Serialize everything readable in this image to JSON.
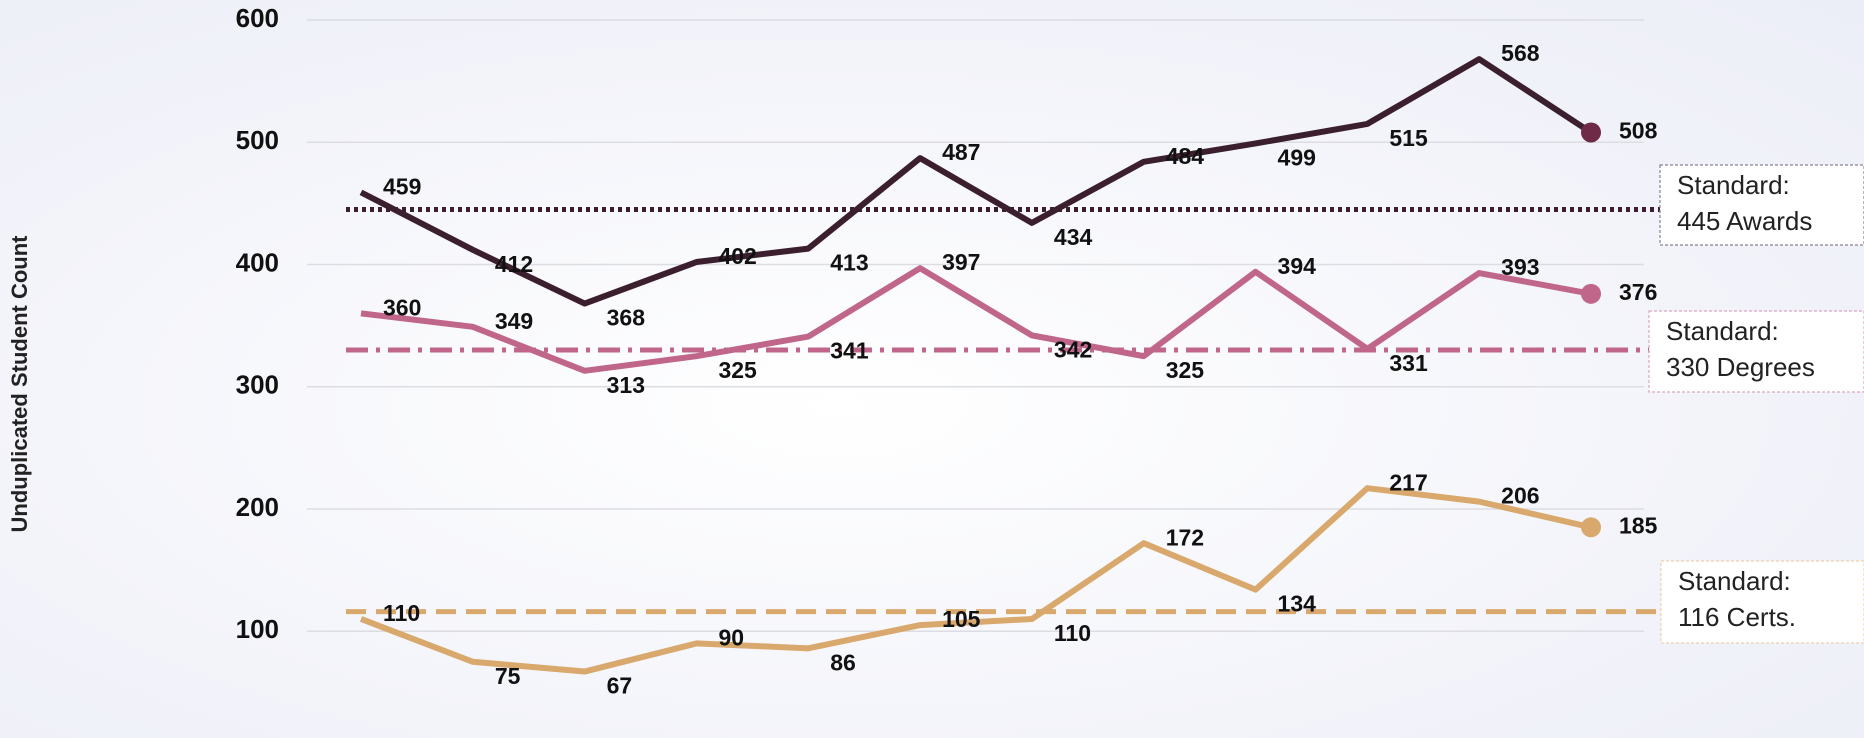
{
  "chart_data": {
    "type": "line",
    "y_label": "Unduplicated Student Count",
    "categories": [
      null,
      null,
      null,
      null,
      null,
      null,
      null,
      null,
      null,
      null,
      null,
      null
    ],
    "series": [
      {
        "name": "Awards",
        "color": "#3b1f2e",
        "marker_color": "#6e2a47",
        "values": [
          459,
          412,
          368,
          402,
          413,
          487,
          434,
          484,
          499,
          515,
          568,
          508
        ]
      },
      {
        "name": "Degrees",
        "color": "#c0668a",
        "marker_color": "#c0668a",
        "values": [
          360,
          349,
          313,
          325,
          341,
          397,
          342,
          325,
          394,
          331,
          393,
          376
        ]
      },
      {
        "name": "Certs.",
        "color": "#d9a86c",
        "marker_color": "#d9a86c",
        "values": [
          110,
          75,
          67,
          90,
          86,
          105,
          110,
          172,
          134,
          217,
          206,
          185
        ]
      }
    ],
    "standards": [
      {
        "value": 445,
        "color": "#3b1f2e",
        "style": "dotted",
        "border": "#8a7f99",
        "label": [
          "Standard:",
          "445 Awards"
        ]
      },
      {
        "value": 330,
        "color": "#c0668a",
        "style": "dashdot",
        "border": "#d9a6c0",
        "label": [
          "Standard:",
          "330 Degrees"
        ]
      },
      {
        "value": 116,
        "color": "#d9a86c",
        "style": "dashed",
        "border": "#ecd0b0",
        "label": [
          "Standard:",
          "116 Certs."
        ]
      }
    ],
    "ylim": [
      20,
      600
    ],
    "yticks": [
      100,
      200,
      300,
      400,
      500,
      600
    ],
    "grid": true
  }
}
